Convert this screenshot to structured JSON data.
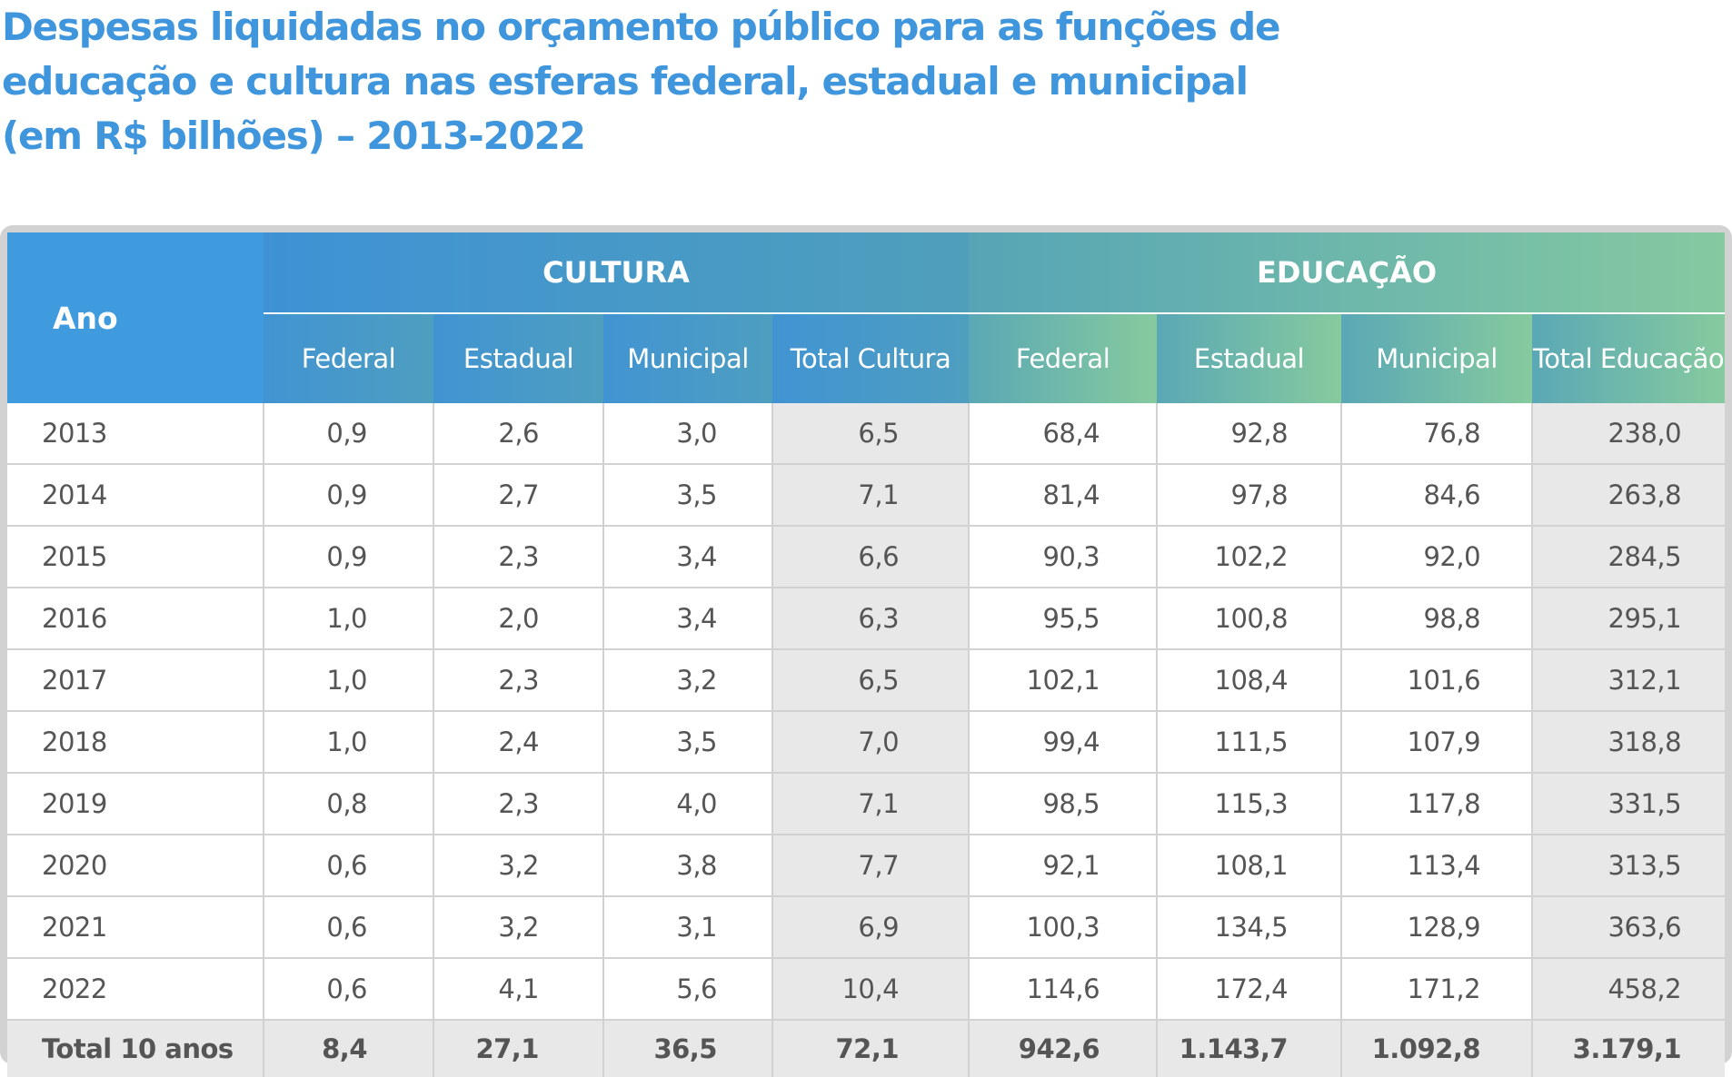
{
  "title_lines": [
    "Despesas liquidadas no orçamento público para as funções de",
    "educação e cultura nas esferas federal, estadual e municipal",
    "(em R$ bilhões) – 2013-2022"
  ],
  "header": {
    "ano": "Ano",
    "cultura": "CULTURA",
    "educacao": "EDUCAÇÃO",
    "subcolumns": [
      "Federal",
      "Estadual",
      "Municipal",
      "Total Cultura",
      "Federal",
      "Estadual",
      "Municipal",
      "Total Educação"
    ]
  },
  "rows": [
    [
      "2013",
      "0,9",
      "2,6",
      "3,0",
      "6,5",
      "68,4",
      "92,8",
      "76,8",
      "238,0"
    ],
    [
      "2014",
      "0,9",
      "2,7",
      "3,5",
      "7,1",
      "81,4",
      "97,8",
      "84,6",
      "263,8"
    ],
    [
      "2015",
      "0,9",
      "2,3",
      "3,4",
      "6,6",
      "90,3",
      "102,2",
      "92,0",
      "284,5"
    ],
    [
      "2016",
      "1,0",
      "2,0",
      "3,4",
      "6,3",
      "95,5",
      "100,8",
      "98,8",
      "295,1"
    ],
    [
      "2017",
      "1,0",
      "2,3",
      "3,2",
      "6,5",
      "102,1",
      "108,4",
      "101,6",
      "312,1"
    ],
    [
      "2018",
      "1,0",
      "2,4",
      "3,5",
      "7,0",
      "99,4",
      "111,5",
      "107,9",
      "318,8"
    ],
    [
      "2019",
      "0,8",
      "2,3",
      "4,0",
      "7,1",
      "98,5",
      "115,3",
      "117,8",
      "331,5"
    ],
    [
      "2020",
      "0,6",
      "3,2",
      "3,8",
      "7,7",
      "92,1",
      "108,1",
      "113,4",
      "313,5"
    ],
    [
      "2021",
      "0,6",
      "3,2",
      "3,1",
      "6,9",
      "100,3",
      "134,5",
      "128,9",
      "363,6"
    ],
    [
      "2022",
      "0,6",
      "4,1",
      "5,6",
      "10,4",
      "114,6",
      "172,4",
      "171,2",
      "458,2"
    ]
  ],
  "total_row": [
    "Total 10 anos",
    "8,4",
    "27,1",
    "36,5",
    "72,1",
    "942,6",
    "1.143,7",
    "1.092,8",
    "3.179,1"
  ]
}
